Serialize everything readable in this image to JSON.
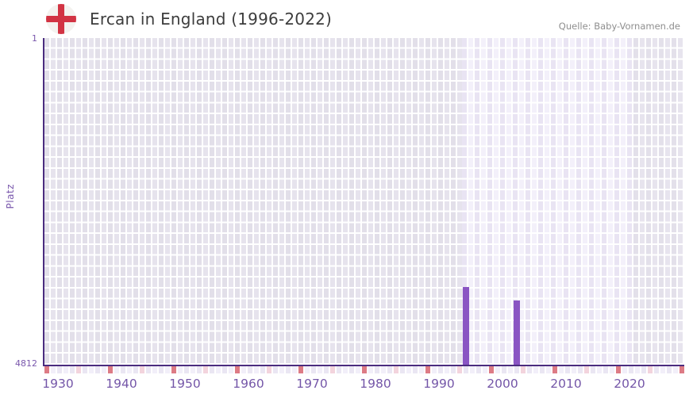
{
  "header": {
    "title": "Ercan in England (1996-2022)",
    "source": "Quelle: Baby-Vornamen.de",
    "flag_icon": "england-flag-icon"
  },
  "chart_data": {
    "type": "bar",
    "title": "Ercan in England (1996-2022)",
    "ylabel": "Platz",
    "xlabel": "",
    "y_axis": {
      "top_tick": "1",
      "bottom_tick": "4812",
      "min": 1,
      "max": 4812,
      "inverted": true
    },
    "x_ticks": [
      "1930",
      "1940",
      "1950",
      "1960",
      "1970",
      "1980",
      "1990",
      "2000",
      "2010",
      "2020"
    ],
    "data_years": {
      "start": 1996,
      "end": 2022
    },
    "points": [
      {
        "year": 1996,
        "rank": 3667
      },
      {
        "year": 2004,
        "rank": 3860
      }
    ],
    "grid": true,
    "legend": "none",
    "colors": {
      "bar": "#8a55c3",
      "axis": "#4b2c7f",
      "tick_label": "#7a58ad",
      "title_text": "#3d3d3d",
      "source_text": "#8e8e8e",
      "pre_data_columns": [
        "#e2dfe9",
        "#e6e3ed"
      ],
      "data_columns": [
        "#e9e4f3",
        "#f3f0fa"
      ],
      "post_data_columns": [
        "#e3e0ea",
        "#e7e4ee"
      ],
      "strip_decade": "#dd7b85",
      "strip_half_decade": "#f3d4dd",
      "strip_base": [
        "#eae6f3",
        "#f2eff9"
      ],
      "flag_red": "#d23343",
      "flag_bg": "#f4f2ef"
    }
  }
}
